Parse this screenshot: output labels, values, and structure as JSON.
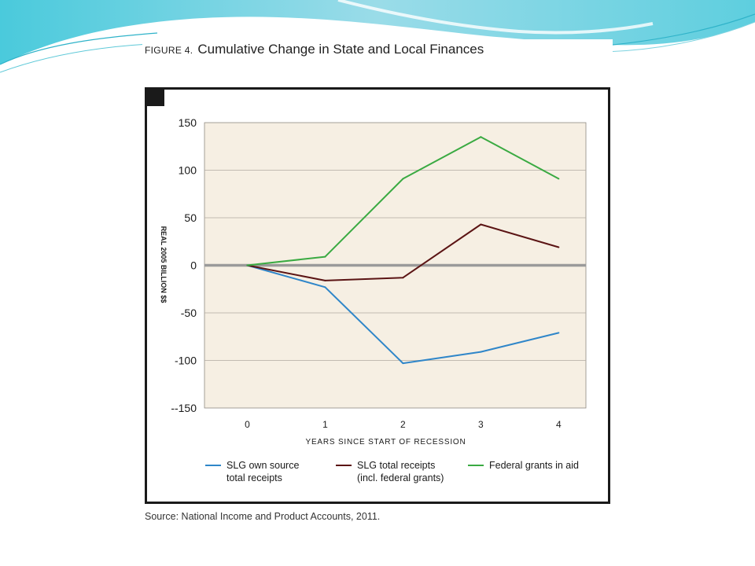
{
  "figure": {
    "label": "FIGURE 4.",
    "title": "Cumulative Change in State and Local Finances",
    "source": "Source:  National Income and Product Accounts, 2011."
  },
  "chart_data": {
    "type": "line",
    "xlabel": "YEARS SINCE START OF RECESSION",
    "ylabel": "REAL 2005 BILLION $$",
    "x": [
      0,
      1,
      2,
      3,
      4
    ],
    "xlim": [
      -0.55,
      4.35
    ],
    "ylim": [
      -150,
      150
    ],
    "y_ticks": [
      150,
      100,
      50,
      0,
      -50,
      -100,
      -150
    ],
    "y_tick_labels": [
      "150",
      "100",
      "50",
      "0",
      "-50",
      "-100",
      "--150"
    ],
    "x_tick_labels": [
      "0",
      "1",
      "2",
      "3",
      "4"
    ],
    "grid": true,
    "legend_position": "bottom",
    "series": [
      {
        "name": "SLG own source\ntotal receipts",
        "values": [
          0,
          -23,
          -103,
          -91,
          -71
        ],
        "color": "#2f86c9"
      },
      {
        "name": "SLG total receipts\n(incl. federal grants)",
        "values": [
          0,
          -16,
          -13,
          43,
          19
        ],
        "color": "#5b1414"
      },
      {
        "name": "Federal grants in aid",
        "values": [
          0,
          9,
          91,
          135,
          91
        ],
        "color": "#3aaa42"
      }
    ],
    "colors": {
      "plot_background": "#f6efe3",
      "gridline": "#b0aaa0",
      "zero_line": "#9a9a9a",
      "frame": "#1a1a1a"
    }
  }
}
